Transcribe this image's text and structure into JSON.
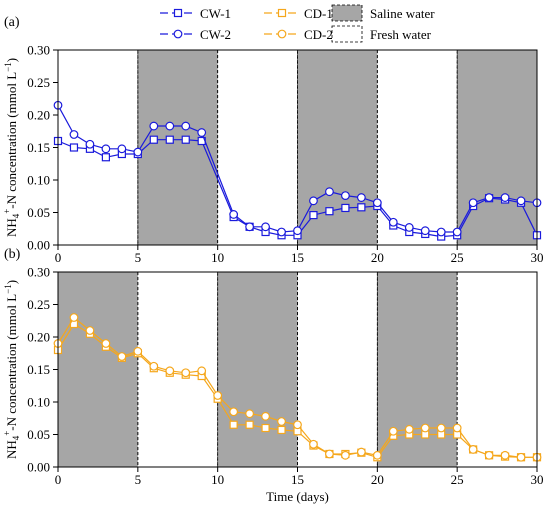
{
  "legend": {
    "items": [
      {
        "label": "CW-1",
        "color": "#1a1adc",
        "marker": "square",
        "kind": "series"
      },
      {
        "label": "CD-1",
        "color": "#f5a71c",
        "marker": "square",
        "kind": "series"
      },
      {
        "label": "Saline water",
        "color": "#a6a6a6",
        "kind": "patch"
      },
      {
        "label": "CW-2",
        "color": "#1a1adc",
        "marker": "circle",
        "kind": "series"
      },
      {
        "label": "CD-2",
        "color": "#f5a71c",
        "marker": "circle",
        "kind": "series"
      },
      {
        "label": "Fresh water",
        "color": "#ffffff",
        "kind": "patch"
      }
    ]
  },
  "ylabel": "NH4+-N concentration (mmol L−1)",
  "chart_data": [
    {
      "type": "line",
      "panel_label": "(a)",
      "xlabel": "",
      "xlim": [
        0,
        30
      ],
      "ylim": [
        0,
        0.3
      ],
      "xticks": [
        "0",
        "5",
        "10",
        "15",
        "20",
        "25",
        "30"
      ],
      "yticks": [
        "0.00",
        "0.05",
        "0.10",
        "0.15",
        "0.20",
        "0.25",
        "0.30"
      ],
      "saline_periods": [
        [
          5,
          10
        ],
        [
          15,
          20
        ],
        [
          25,
          30
        ]
      ],
      "grid": false,
      "series": [
        {
          "name": "CW-1",
          "color": "#1a1adc",
          "marker": "square",
          "x": [
            0,
            1,
            2,
            3,
            4,
            5,
            6,
            7,
            8,
            9,
            11,
            12,
            13,
            14,
            15,
            16,
            17,
            18,
            19,
            20,
            21,
            22,
            23,
            24,
            25,
            26,
            27,
            28,
            29,
            30
          ],
          "y": [
            0.16,
            0.15,
            0.148,
            0.135,
            0.14,
            0.14,
            0.162,
            0.162,
            0.162,
            0.16,
            0.043,
            0.028,
            0.02,
            0.015,
            0.015,
            0.046,
            0.052,
            0.057,
            0.058,
            0.06,
            0.03,
            0.02,
            0.017,
            0.013,
            0.015,
            0.06,
            0.072,
            0.07,
            0.065,
            0.015
          ]
        },
        {
          "name": "CW-2",
          "color": "#1a1adc",
          "marker": "circle",
          "x": [
            0,
            1,
            2,
            3,
            4,
            5,
            6,
            7,
            8,
            9,
            11,
            12,
            13,
            14,
            15,
            16,
            17,
            18,
            19,
            20,
            21,
            22,
            23,
            24,
            25,
            26,
            27,
            28,
            29,
            30
          ],
          "y": [
            0.215,
            0.17,
            0.155,
            0.148,
            0.148,
            0.143,
            0.183,
            0.183,
            0.183,
            0.173,
            0.047,
            0.028,
            0.028,
            0.02,
            0.022,
            0.068,
            0.082,
            0.076,
            0.073,
            0.065,
            0.035,
            0.027,
            0.022,
            0.02,
            0.02,
            0.065,
            0.073,
            0.073,
            0.068,
            0.065
          ]
        }
      ]
    },
    {
      "type": "line",
      "panel_label": "(b)",
      "xlabel": "Time (days)",
      "xlim": [
        0,
        30
      ],
      "ylim": [
        0,
        0.3
      ],
      "xticks": [
        "0",
        "5",
        "10",
        "15",
        "20",
        "25",
        "30"
      ],
      "yticks": [
        "0.00",
        "0.05",
        "0.10",
        "0.15",
        "0.20",
        "0.25",
        "0.30"
      ],
      "saline_periods": [
        [
          0,
          5
        ],
        [
          10,
          15
        ],
        [
          20,
          25
        ]
      ],
      "grid": false,
      "series": [
        {
          "name": "CD-1",
          "color": "#f5a71c",
          "marker": "square",
          "x": [
            0,
            1,
            2,
            3,
            4,
            5,
            6,
            7,
            8,
            9,
            10,
            11,
            12,
            13,
            14,
            15,
            16,
            17,
            18,
            19,
            20,
            21,
            22,
            23,
            24,
            25,
            26,
            27,
            28,
            29,
            30
          ],
          "y": [
            0.18,
            0.22,
            0.205,
            0.185,
            0.168,
            0.175,
            0.152,
            0.145,
            0.142,
            0.14,
            0.105,
            0.065,
            0.065,
            0.06,
            0.057,
            0.055,
            0.033,
            0.02,
            0.02,
            0.022,
            0.015,
            0.048,
            0.05,
            0.05,
            0.05,
            0.05,
            0.027,
            0.018,
            0.016,
            0.015,
            0.015
          ]
        },
        {
          "name": "CD-2",
          "color": "#f5a71c",
          "marker": "circle",
          "x": [
            0,
            1,
            2,
            3,
            4,
            5,
            6,
            7,
            8,
            9,
            10,
            11,
            12,
            13,
            14,
            15,
            16,
            17,
            18,
            19,
            20,
            21,
            22,
            23,
            24,
            25,
            26,
            27,
            28,
            29,
            30
          ],
          "y": [
            0.19,
            0.23,
            0.21,
            0.19,
            0.17,
            0.178,
            0.155,
            0.148,
            0.145,
            0.148,
            0.11,
            0.085,
            0.082,
            0.078,
            0.07,
            0.065,
            0.035,
            0.02,
            0.018,
            0.023,
            0.018,
            0.055,
            0.058,
            0.06,
            0.06,
            0.06,
            0.027,
            0.018,
            0.018,
            0.015,
            0.015
          ]
        }
      ]
    }
  ]
}
